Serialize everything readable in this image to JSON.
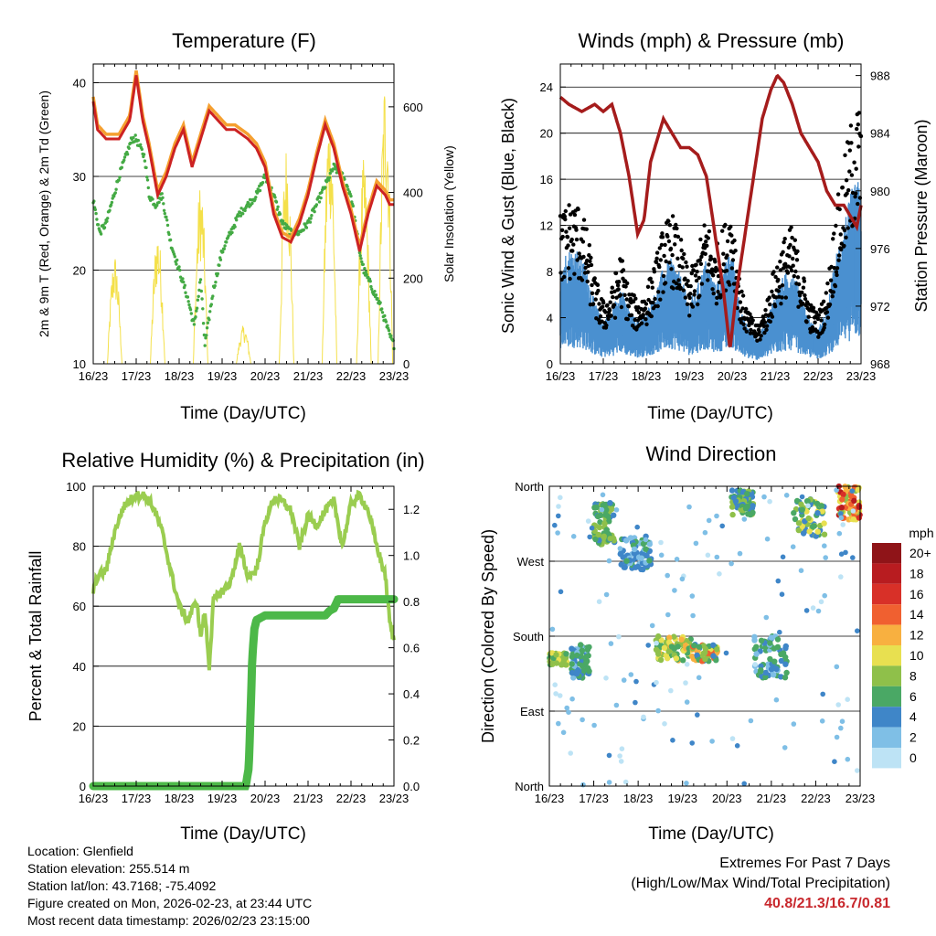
{
  "colors": {
    "temp2m": "#e05a00",
    "temp9m": "#cc2222",
    "tempOrange": "#f5a030",
    "dewpoint": "#44aa44",
    "solar": "#f4e04a",
    "gust": "#000000",
    "wind": "#4a90d0",
    "pressure": "#a51c1c",
    "rh": "#9acd50",
    "precip": "#4cb848",
    "extremes": "#c8282d"
  },
  "chart_data": [
    {
      "id": "temperature",
      "type": "line",
      "title": "Temperature (F)",
      "xlabel": "Time (Day/UTC)",
      "ylabel": "2m & 9m T (Red, Orange) & 2m Td (Green)",
      "y2label": "Solar Insolation (Yellow)",
      "x_ticks": [
        "16/23",
        "17/23",
        "18/23",
        "19/23",
        "20/23",
        "21/23",
        "22/23",
        "23/23"
      ],
      "ylim": [
        10,
        42
      ],
      "y_ticks": [
        10,
        20,
        30,
        40
      ],
      "y2lim": [
        0,
        700
      ],
      "y2_ticks": [
        0,
        200,
        400,
        600
      ],
      "grid_y": [
        20,
        30,
        40
      ],
      "series": [
        {
          "name": "Temperature",
          "x": [
            0,
            0.1,
            0.3,
            0.6,
            0.85,
            1.0,
            1.15,
            1.3,
            1.5,
            1.7,
            1.9,
            2.1,
            2.3,
            2.5,
            2.7,
            2.9,
            3.1,
            3.3,
            3.6,
            3.8,
            4.0,
            4.2,
            4.4,
            4.6,
            4.8,
            5.0,
            5.2,
            5.4,
            5.6,
            5.8,
            6.0,
            6.2,
            6.4,
            6.6,
            6.8,
            6.9,
            7.0
          ],
          "values": [
            38,
            35,
            34,
            34,
            36,
            40.8,
            36,
            33,
            28,
            30,
            33,
            35,
            31,
            34,
            37,
            36,
            35,
            35,
            34,
            33,
            31,
            26,
            23.5,
            23,
            25,
            28,
            32,
            35.5,
            33,
            29,
            26,
            22,
            26,
            29,
            28,
            27,
            27
          ]
        },
        {
          "name": "Dewpoint",
          "x": [
            0,
            0.15,
            0.3,
            0.6,
            0.9,
            1.0,
            1.2,
            1.3,
            1.45,
            1.6,
            1.8,
            2.0,
            2.2,
            2.35,
            2.5,
            2.6,
            2.8,
            3.0,
            3.2,
            3.4,
            3.6,
            3.8,
            4.0,
            4.2,
            4.4,
            4.6,
            4.8,
            5.0,
            5.3,
            5.6,
            5.8,
            6.0,
            6.2,
            6.3,
            6.5,
            6.7,
            6.9,
            7.0
          ],
          "values": [
            27.5,
            24,
            25,
            30,
            34,
            34,
            32,
            28,
            27,
            28,
            23,
            20,
            17,
            14,
            19,
            12,
            18,
            22,
            24,
            26,
            27,
            28,
            30,
            28,
            25,
            24,
            24,
            25,
            28,
            31,
            30,
            28,
            22,
            20,
            18,
            16,
            13,
            12
          ]
        },
        {
          "name": "Solar",
          "axis": "y2",
          "peaks": [
            {
              "center": 0.5,
              "value": 260
            },
            {
              "center": 1.5,
              "value": 320
            },
            {
              "center": 2.5,
              "value": 430
            },
            {
              "center": 3.5,
              "value": 90
            },
            {
              "center": 4.5,
              "value": 520
            },
            {
              "center": 5.5,
              "value": 610
            },
            {
              "center": 6.3,
              "value": 480
            },
            {
              "center": 6.8,
              "value": 690
            }
          ]
        }
      ]
    },
    {
      "id": "winds",
      "type": "scatter",
      "title": "Winds (mph) & Pressure (mb)",
      "xlabel": "Time (Day/UTC)",
      "ylabel": "Sonic Wind & Gust (Blue, Black)",
      "y2label": "Station Pressure (Maroon)",
      "x_ticks": [
        "16/23",
        "17/23",
        "18/23",
        "19/23",
        "20/23",
        "21/23",
        "22/23",
        "23/23"
      ],
      "ylim": [
        0,
        26
      ],
      "y_ticks": [
        0,
        4,
        8,
        12,
        16,
        20,
        24
      ],
      "y2lim": [
        968,
        988.8
      ],
      "y2_ticks": [
        968,
        972,
        976,
        980,
        984,
        988
      ],
      "grid_y": [
        4,
        8,
        12,
        16,
        20,
        24
      ],
      "gust_envelope": {
        "x": [
          0,
          0.2,
          0.4,
          0.6,
          0.8,
          1.0,
          1.2,
          1.4,
          1.6,
          1.8,
          2.0,
          2.2,
          2.4,
          2.6,
          2.8,
          3.0,
          3.2,
          3.4,
          3.6,
          3.8,
          4.0,
          4.2,
          4.4,
          4.6,
          4.8,
          5.0,
          5.2,
          5.4,
          5.6,
          5.8,
          6.0,
          6.2,
          6.4,
          6.6,
          6.8,
          7.0
        ],
        "values": [
          12,
          13,
          13,
          11,
          7,
          5,
          6,
          9,
          6,
          5,
          6,
          8,
          11,
          12,
          10,
          7,
          9,
          12,
          9,
          11,
          13,
          6,
          4,
          3,
          5,
          8,
          10,
          11,
          8,
          5,
          4,
          6,
          12,
          16,
          20,
          21
        ]
      },
      "series": [
        {
          "name": "Pressure",
          "x": [
            0,
            0.2,
            0.5,
            0.8,
            1.0,
            1.2,
            1.4,
            1.6,
            1.8,
            1.95,
            2.1,
            2.4,
            2.6,
            2.8,
            3.0,
            3.2,
            3.4,
            3.6,
            3.8,
            3.95,
            4.1,
            4.3,
            4.5,
            4.7,
            4.9,
            5.05,
            5.2,
            5.4,
            5.6,
            5.8,
            6.0,
            6.2,
            6.4,
            6.6,
            6.8,
            6.9,
            7.0
          ],
          "values": [
            986.5,
            986,
            985.5,
            986,
            985.5,
            986,
            984,
            981,
            977,
            978,
            982,
            985,
            984,
            983,
            983,
            982.5,
            981,
            977,
            973,
            969,
            973,
            977,
            981,
            985,
            987,
            988,
            987.5,
            986,
            984,
            983,
            982,
            980,
            979,
            979,
            978,
            977.5,
            979
          ]
        }
      ]
    },
    {
      "id": "humidity",
      "type": "line",
      "title": "Relative Humidity (%) & Precipitation (in)",
      "xlabel": "Time (Day/UTC)",
      "ylabel": "Percent & Total Rainfall",
      "x_ticks": [
        "16/23",
        "17/23",
        "18/23",
        "19/23",
        "20/23",
        "21/23",
        "22/23",
        "23/23"
      ],
      "ylim": [
        0,
        100
      ],
      "y_ticks": [
        0,
        20,
        40,
        60,
        80,
        100
      ],
      "y2lim": [
        0,
        1.3
      ],
      "y2_ticks": [
        "0.0",
        "0.2",
        "0.4",
        "0.6",
        "0.8",
        "1.0",
        "1.2"
      ],
      "grid_y": [
        20,
        40,
        60,
        80
      ],
      "series": [
        {
          "name": "Relative Humidity",
          "x": [
            0,
            0.1,
            0.3,
            0.5,
            0.7,
            0.9,
            1.0,
            1.2,
            1.4,
            1.6,
            1.8,
            2.0,
            2.2,
            2.4,
            2.5,
            2.6,
            2.7,
            2.8,
            3.0,
            3.2,
            3.4,
            3.6,
            3.8,
            4.0,
            4.2,
            4.4,
            4.6,
            4.8,
            5.0,
            5.2,
            5.4,
            5.6,
            5.8,
            6.0,
            6.2,
            6.4,
            6.6,
            6.8,
            6.9,
            7.0
          ],
          "values": [
            65,
            70,
            72,
            85,
            93,
            96,
            97,
            97,
            93,
            85,
            72,
            60,
            55,
            62,
            50,
            58,
            40,
            62,
            65,
            68,
            80,
            70,
            72,
            88,
            96,
            95,
            92,
            80,
            90,
            87,
            92,
            95,
            80,
            94,
            97,
            92,
            80,
            70,
            55,
            48
          ]
        },
        {
          "name": "Total Rainfall",
          "axis": "y2",
          "x": [
            0,
            3.55,
            3.62,
            3.66,
            3.7,
            3.75,
            3.8,
            3.9,
            4.0,
            4.2,
            5.4,
            5.5,
            5.6,
            5.7,
            6.0,
            7.0
          ],
          "values": [
            0,
            0,
            0.08,
            0.3,
            0.55,
            0.68,
            0.72,
            0.73,
            0.74,
            0.74,
            0.74,
            0.76,
            0.77,
            0.81,
            0.81,
            0.81
          ]
        }
      ]
    },
    {
      "id": "direction",
      "type": "scatter",
      "title": "Wind Direction",
      "xlabel": "Time (Day/UTC)",
      "ylabel": "Direction (Colored By Speed)",
      "x_ticks": [
        "16/23",
        "17/23",
        "18/23",
        "19/23",
        "20/23",
        "21/23",
        "22/23",
        "23/23"
      ],
      "y_ticks": [
        "North",
        "East",
        "South",
        "West",
        "North"
      ],
      "ylim": [
        0,
        360
      ],
      "grid_y": [
        90,
        180,
        270
      ],
      "colorbar": {
        "title": "mph",
        "labels": [
          "0",
          "2",
          "4",
          "6",
          "8",
          "10",
          "12",
          "14",
          "16",
          "18",
          "20+"
        ],
        "colors": [
          "#bde3f5",
          "#7fbfe6",
          "#3f86c8",
          "#4aa865",
          "#8fc04a",
          "#e8e050",
          "#f8b040",
          "#f06030",
          "#d83028",
          "#b81c20",
          "#8f1418"
        ]
      },
      "clusters": [
        {
          "x": [
            0.0,
            0.4
          ],
          "dir": [
            145,
            160
          ],
          "speed": [
            6,
            11
          ]
        },
        {
          "x": [
            0.5,
            0.9
          ],
          "dir": [
            130,
            170
          ],
          "speed": [
            2,
            7
          ]
        },
        {
          "x": [
            1.0,
            1.5
          ],
          "dir": [
            290,
            340
          ],
          "speed": [
            4,
            9
          ]
        },
        {
          "x": [
            1.6,
            2.3
          ],
          "dir": [
            260,
            300
          ],
          "speed": [
            2,
            6
          ]
        },
        {
          "x": [
            2.4,
            3.2
          ],
          "dir": [
            150,
            180
          ],
          "speed": [
            5,
            12
          ]
        },
        {
          "x": [
            3.2,
            3.8
          ],
          "dir": [
            150,
            170
          ],
          "speed": [
            4,
            14
          ]
        },
        {
          "x": [
            4.1,
            4.6
          ],
          "dir": [
            325,
            355
          ],
          "speed": [
            3,
            9
          ]
        },
        {
          "x": [
            4.6,
            5.4
          ],
          "dir": [
            130,
            180
          ],
          "speed": [
            2,
            7
          ]
        },
        {
          "x": [
            5.5,
            6.2
          ],
          "dir": [
            300,
            345
          ],
          "speed": [
            4,
            10
          ]
        },
        {
          "x": [
            6.5,
            7.0
          ],
          "dir": [
            320,
            360
          ],
          "speed": [
            8,
            18
          ]
        }
      ]
    }
  ],
  "station": {
    "location": "Location: Glenfield",
    "elevation": "Station elevation: 255.514 m",
    "latlon": "Station lat/lon: 43.7168; -75.4092",
    "created": "Figure created on Mon, 2026-02-23, at 23:44 UTC",
    "recent": "Most recent data timestamp: 2026/02/23 23:15:00"
  },
  "extremes": {
    "title": "Extremes For Past 7 Days",
    "subtitle": "(High/Low/Max Wind/Total Precipitation)",
    "values": "40.8/21.3/16.7/0.81"
  }
}
